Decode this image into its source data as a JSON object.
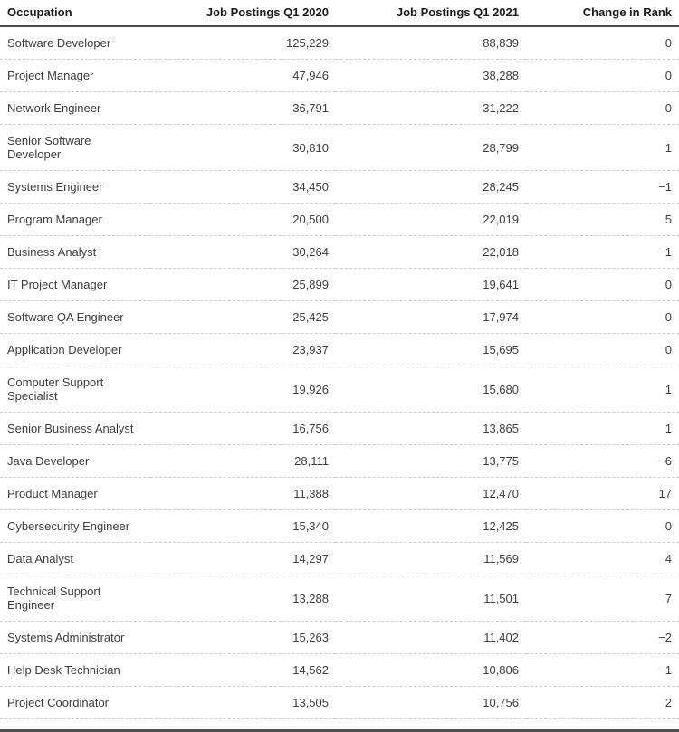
{
  "chart_data": {
    "type": "table",
    "title": "",
    "columns": [
      "Occupation",
      "Job Postings Q1 2020",
      "Job Postings Q1 2021",
      "Change in Rank"
    ],
    "rows": [
      [
        "Software Developer",
        "125,229",
        "88,839",
        "0"
      ],
      [
        "Project Manager",
        "47,946",
        "38,288",
        "0"
      ],
      [
        "Network Engineer",
        "36,791",
        "31,222",
        "0"
      ],
      [
        "Senior Software Developer",
        "30,810",
        "28,799",
        "1"
      ],
      [
        "Systems Engineer",
        "34,450",
        "28,245",
        "−1"
      ],
      [
        "Program Manager",
        "20,500",
        "22,019",
        "5"
      ],
      [
        "Business Analyst",
        "30,264",
        "22,018",
        "−1"
      ],
      [
        "IT Project Manager",
        "25,899",
        "19,641",
        "0"
      ],
      [
        "Software QA Engineer",
        "25,425",
        "17,974",
        "0"
      ],
      [
        "Application Developer",
        "23,937",
        "15,695",
        "0"
      ],
      [
        "Computer Support Specialist",
        "19,926",
        "15,680",
        "1"
      ],
      [
        "Senior Business Analyst",
        "16,756",
        "13,865",
        "1"
      ],
      [
        "Java Developer",
        "28,111",
        "13,775",
        "−6"
      ],
      [
        "Product Manager",
        "11,388",
        "12,470",
        "17"
      ],
      [
        "Cybersecurity Engineer",
        "15,340",
        "12,425",
        "0"
      ],
      [
        "Data Analyst",
        "14,297",
        "11,569",
        "4"
      ],
      [
        "Technical Support Engineer",
        "13,288",
        "11,501",
        "7"
      ],
      [
        "Systems Administrator",
        "15,263",
        "11,402",
        "−2"
      ],
      [
        "Help Desk Technician",
        "14,562",
        "10,806",
        "−1"
      ],
      [
        "Project Coordinator",
        "13,505",
        "10,756",
        "2"
      ]
    ]
  },
  "colors": {
    "header_text": "#1a1a1a",
    "body_text": "#3d3d3d",
    "header_rule": "#4d4d4d",
    "row_divider": "#cccccc",
    "bottom_rule": "#4d4d4d",
    "background": "#ffffff"
  }
}
